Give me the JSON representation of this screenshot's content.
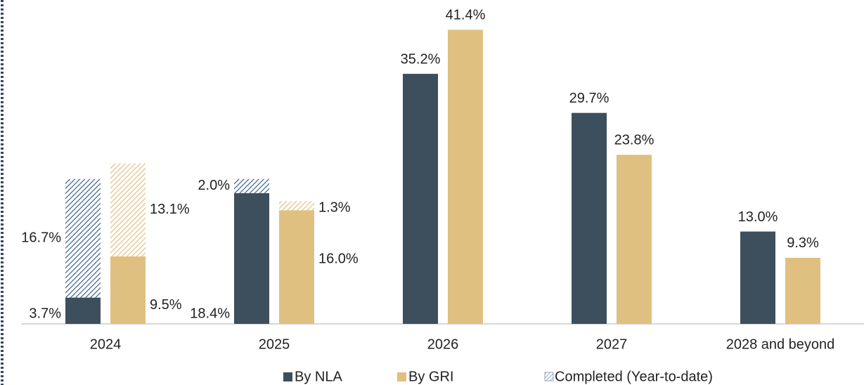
{
  "chart_data": {
    "type": "bar",
    "categories": [
      "2024",
      "2025",
      "2026",
      "2027",
      "2028 and beyond"
    ],
    "series": [
      {
        "name": "By NLA",
        "color": "#3d4f5c",
        "values": [
          3.7,
          18.4,
          35.2,
          29.7,
          13.0
        ],
        "value_labels": [
          "3.7%",
          "18.4%",
          "35.2%",
          "29.7%",
          "13.0%"
        ],
        "completed": [
          16.7,
          2.0,
          null,
          null,
          null
        ],
        "completed_labels": [
          "16.7%",
          "2.0%",
          null,
          null,
          null
        ]
      },
      {
        "name": "By GRI",
        "color": "#e0c080",
        "values": [
          9.5,
          16.0,
          41.4,
          23.8,
          9.3
        ],
        "value_labels": [
          "9.5%",
          "16.0%",
          "41.4%",
          "23.8%",
          "9.3%"
        ],
        "completed": [
          13.1,
          1.3,
          null,
          null,
          null
        ],
        "completed_labels": [
          "13.1%",
          "1.3%",
          null,
          null,
          null
        ]
      }
    ],
    "completed_name": "Completed (Year-to-date)",
    "ylim": [
      0,
      45
    ]
  }
}
